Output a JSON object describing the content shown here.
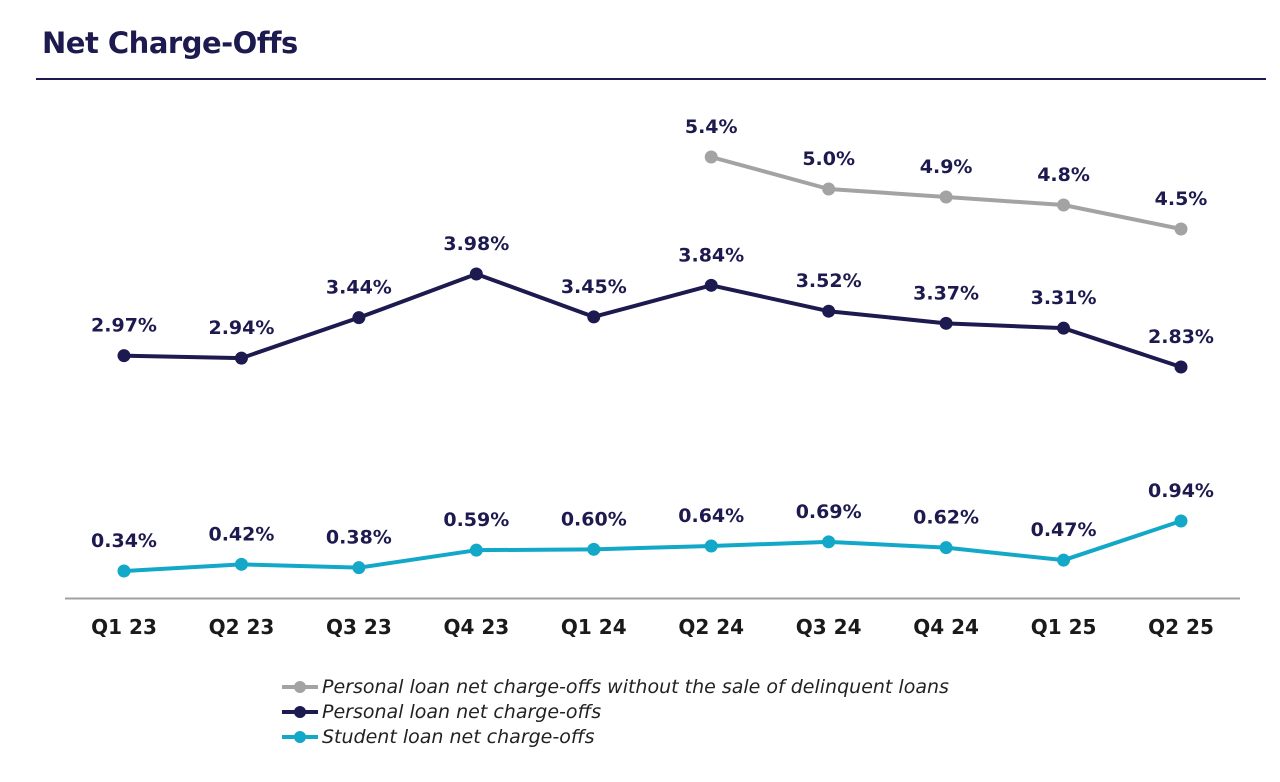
{
  "page": {
    "title": "Net Charge-Offs"
  },
  "chart_data": {
    "type": "line",
    "title": "Net Charge-Offs",
    "categories": [
      "Q1 23",
      "Q2 23",
      "Q3 23",
      "Q4 23",
      "Q1 24",
      "Q2 24",
      "Q3 24",
      "Q4 24",
      "Q1 25",
      "Q2 25"
    ],
    "series": [
      {
        "name": "Personal loan net charge-offs without the sale of delinquent loans",
        "color": "#a3a3a3",
        "values": [
          null,
          null,
          null,
          null,
          null,
          5.4,
          5.0,
          4.9,
          4.8,
          4.5
        ],
        "labels": [
          "",
          "",
          "",
          "",
          "",
          "5.4%",
          "5.0%",
          "4.9%",
          "4.8%",
          "4.5%"
        ]
      },
      {
        "name": "Personal loan net charge-offs",
        "color": "#1d1a4f",
        "values": [
          2.97,
          2.94,
          3.44,
          3.98,
          3.45,
          3.84,
          3.52,
          3.37,
          3.31,
          2.83
        ],
        "labels": [
          "2.97%",
          "2.94%",
          "3.44%",
          "3.98%",
          "3.45%",
          "3.84%",
          "3.52%",
          "3.37%",
          "3.31%",
          "2.83%"
        ]
      },
      {
        "name": "Student loan net charge-offs",
        "color": "#13a8c8",
        "values": [
          0.34,
          0.42,
          0.38,
          0.59,
          0.6,
          0.64,
          0.69,
          0.62,
          0.47,
          0.94
        ],
        "labels": [
          "0.34%",
          "0.42%",
          "0.38%",
          "0.59%",
          "0.60%",
          "0.64%",
          "0.69%",
          "0.62%",
          "0.47%",
          "0.94%"
        ]
      }
    ],
    "legend_position": "bottom",
    "grid": false,
    "axis_line_color": "#a0a0a0"
  }
}
